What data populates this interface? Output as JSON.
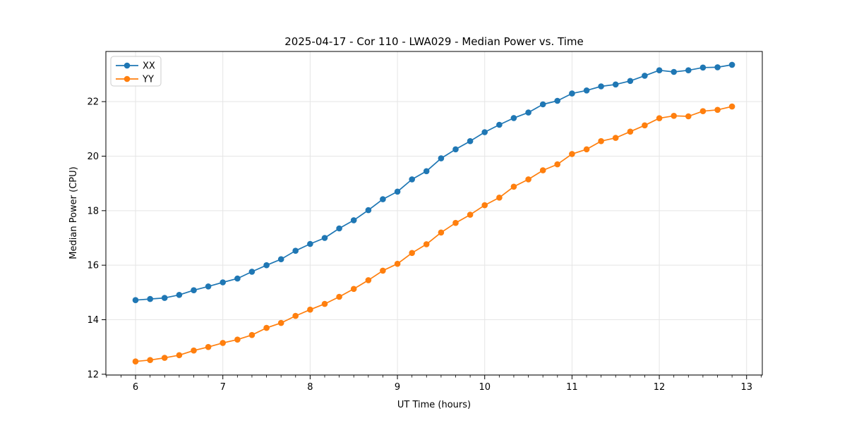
{
  "chart_data": {
    "type": "line",
    "title": "2025-04-17 - Cor 110 - LWA029 - Median Power vs. Time",
    "xlabel": "UT Time (hours)",
    "ylabel": "Median Power (CPU)",
    "xlim": [
      5.66,
      13.18
    ],
    "ylim": [
      11.97,
      23.84
    ],
    "xticks": [
      6,
      7,
      8,
      9,
      10,
      11,
      12,
      13
    ],
    "yticks": [
      12,
      14,
      16,
      18,
      20,
      22
    ],
    "x_minor_step": 0.1667,
    "grid": true,
    "legend_position": "upper left",
    "x": [
      6.0,
      6.167,
      6.333,
      6.5,
      6.667,
      6.833,
      7.0,
      7.167,
      7.333,
      7.5,
      7.667,
      7.833,
      8.0,
      8.167,
      8.333,
      8.5,
      8.667,
      8.833,
      9.0,
      9.167,
      9.333,
      9.5,
      9.667,
      9.833,
      10.0,
      10.167,
      10.333,
      10.5,
      10.667,
      10.833,
      11.0,
      11.167,
      11.333,
      11.5,
      11.667,
      11.833,
      12.0,
      12.167,
      12.333,
      12.5,
      12.667,
      12.833
    ],
    "series": [
      {
        "name": "XX",
        "color": "#1f77b4",
        "values": [
          14.72,
          14.76,
          14.8,
          14.91,
          15.08,
          15.22,
          15.37,
          15.51,
          15.76,
          16.0,
          16.22,
          16.53,
          16.78,
          17.0,
          17.35,
          17.65,
          18.02,
          18.42,
          18.7,
          19.15,
          19.45,
          19.92,
          20.25,
          20.55,
          20.88,
          21.15,
          21.4,
          21.6,
          21.9,
          22.03,
          22.3,
          22.41,
          22.56,
          22.63,
          22.76,
          22.95,
          23.15,
          23.09,
          23.15,
          23.25,
          23.26,
          23.35
        ]
      },
      {
        "name": "YY",
        "color": "#ff7f0e",
        "values": [
          12.47,
          12.52,
          12.6,
          12.7,
          12.87,
          13.0,
          13.15,
          13.27,
          13.44,
          13.7,
          13.88,
          14.14,
          14.37,
          14.58,
          14.84,
          15.13,
          15.45,
          15.8,
          16.05,
          16.45,
          16.77,
          17.2,
          17.55,
          17.85,
          18.2,
          18.48,
          18.88,
          19.15,
          19.48,
          19.7,
          20.08,
          20.25,
          20.55,
          20.67,
          20.9,
          21.13,
          21.39,
          21.48,
          21.46,
          21.65,
          21.7,
          21.82
        ]
      }
    ]
  },
  "colors": {
    "background": "#ffffff",
    "grid": "#e5e5e5",
    "spine": "#000000",
    "text": "#000000",
    "legend_border": "#cccccc",
    "series_xx": "#1f77b4",
    "series_yy": "#ff7f0e"
  }
}
